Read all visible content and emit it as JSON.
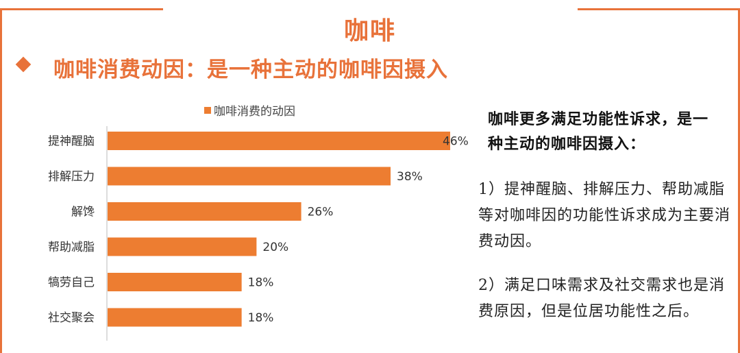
{
  "title": "咖啡",
  "subtitle": "咖啡消费动因：是一种主动的咖啡因摄入",
  "colors": {
    "accent": "#e8723a",
    "bar": "#ed7d31"
  },
  "chart_data": {
    "type": "bar",
    "orientation": "horizontal",
    "legend": "咖啡消费的动因",
    "legend_position": "top",
    "categories": [
      "提神醒脑",
      "排解压力",
      "解馋",
      "帮助减脂",
      "犒劳自己",
      "社交聚会"
    ],
    "values": [
      46,
      38,
      26,
      20,
      18,
      18
    ],
    "value_labels": [
      "46%",
      "38%",
      "26%",
      "20%",
      "18%",
      "18%"
    ],
    "xlim": [
      0,
      46
    ],
    "grid": false
  },
  "side": {
    "heading": "咖啡更多满足功能性诉求，是一种主动的咖啡因摄入：",
    "p1": "1）提神醒脑、排解压力、帮助减脂等对咖啡因的功能性诉求成为主要消费动因。",
    "p2": "2）满足口味需求及社交需求也是消费原因，但是位居功能性之后。"
  }
}
